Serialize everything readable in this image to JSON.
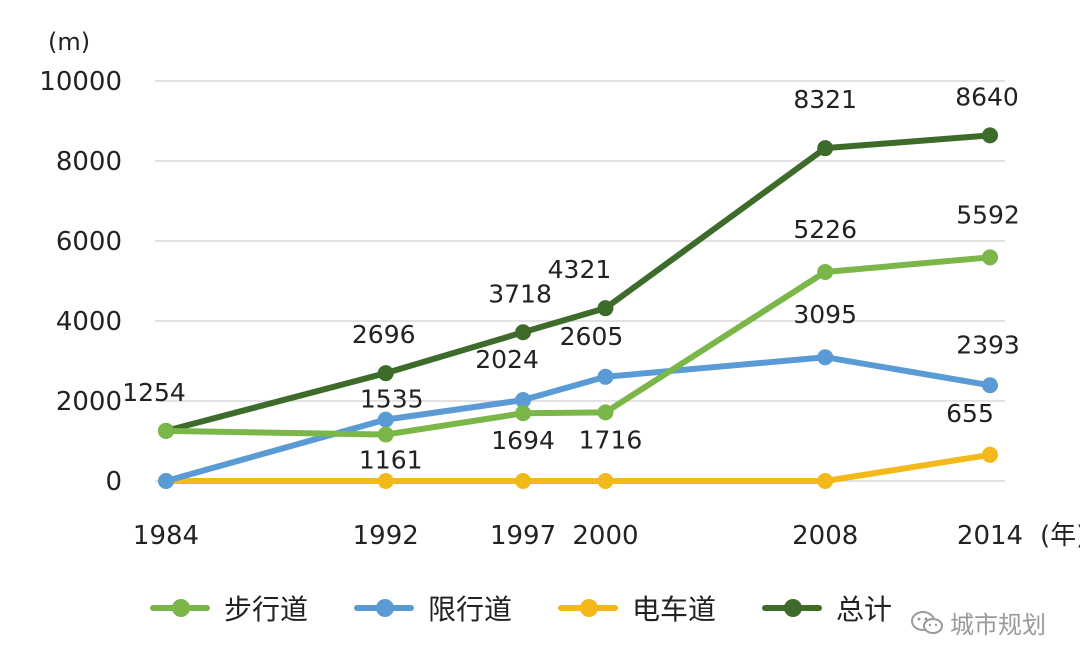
{
  "chart_data": {
    "type": "line",
    "unit_label": "(m)",
    "x_axis_suffix": "(年)",
    "x": [
      "1984",
      "1992",
      "1997",
      "2000",
      "2008",
      "2014"
    ],
    "x_values": [
      1984,
      1992,
      1997,
      2000,
      2008,
      2014
    ],
    "ylim": [
      0,
      10000
    ],
    "yticks": [
      "0",
      "2000",
      "4000",
      "6000",
      "8000",
      "10000"
    ],
    "ytick_values": [
      0,
      2000,
      4000,
      6000,
      8000,
      10000
    ],
    "grid": true,
    "legend_position": "bottom",
    "series": [
      {
        "name": "步行道",
        "color": "#7ab648",
        "values": [
          1254,
          1161,
          1694,
          1716,
          5226,
          5592
        ],
        "labels": [
          "",
          "1161",
          "1694",
          "1716",
          "5226",
          "5592"
        ]
      },
      {
        "name": "限行道",
        "color": "#5b9bd5",
        "values": [
          0,
          1535,
          2024,
          2605,
          3095,
          2393
        ],
        "labels": [
          "",
          "1535",
          "2024",
          "2605",
          "3095",
          "2393"
        ]
      },
      {
        "name": "电车道",
        "color": "#f3b81a",
        "values": [
          0,
          0,
          0,
          0,
          0,
          655
        ],
        "labels": [
          "",
          "",
          "",
          "",
          "",
          "655"
        ]
      },
      {
        "name": "总计",
        "color": "#3d6b2a",
        "values": [
          1254,
          2696,
          3718,
          4321,
          8321,
          8640
        ],
        "labels": [
          "1254",
          "2696",
          "3718",
          "4321",
          "8321",
          "8640"
        ]
      }
    ]
  },
  "watermark": {
    "text": "城市规划",
    "icon": "wechat-icon"
  }
}
